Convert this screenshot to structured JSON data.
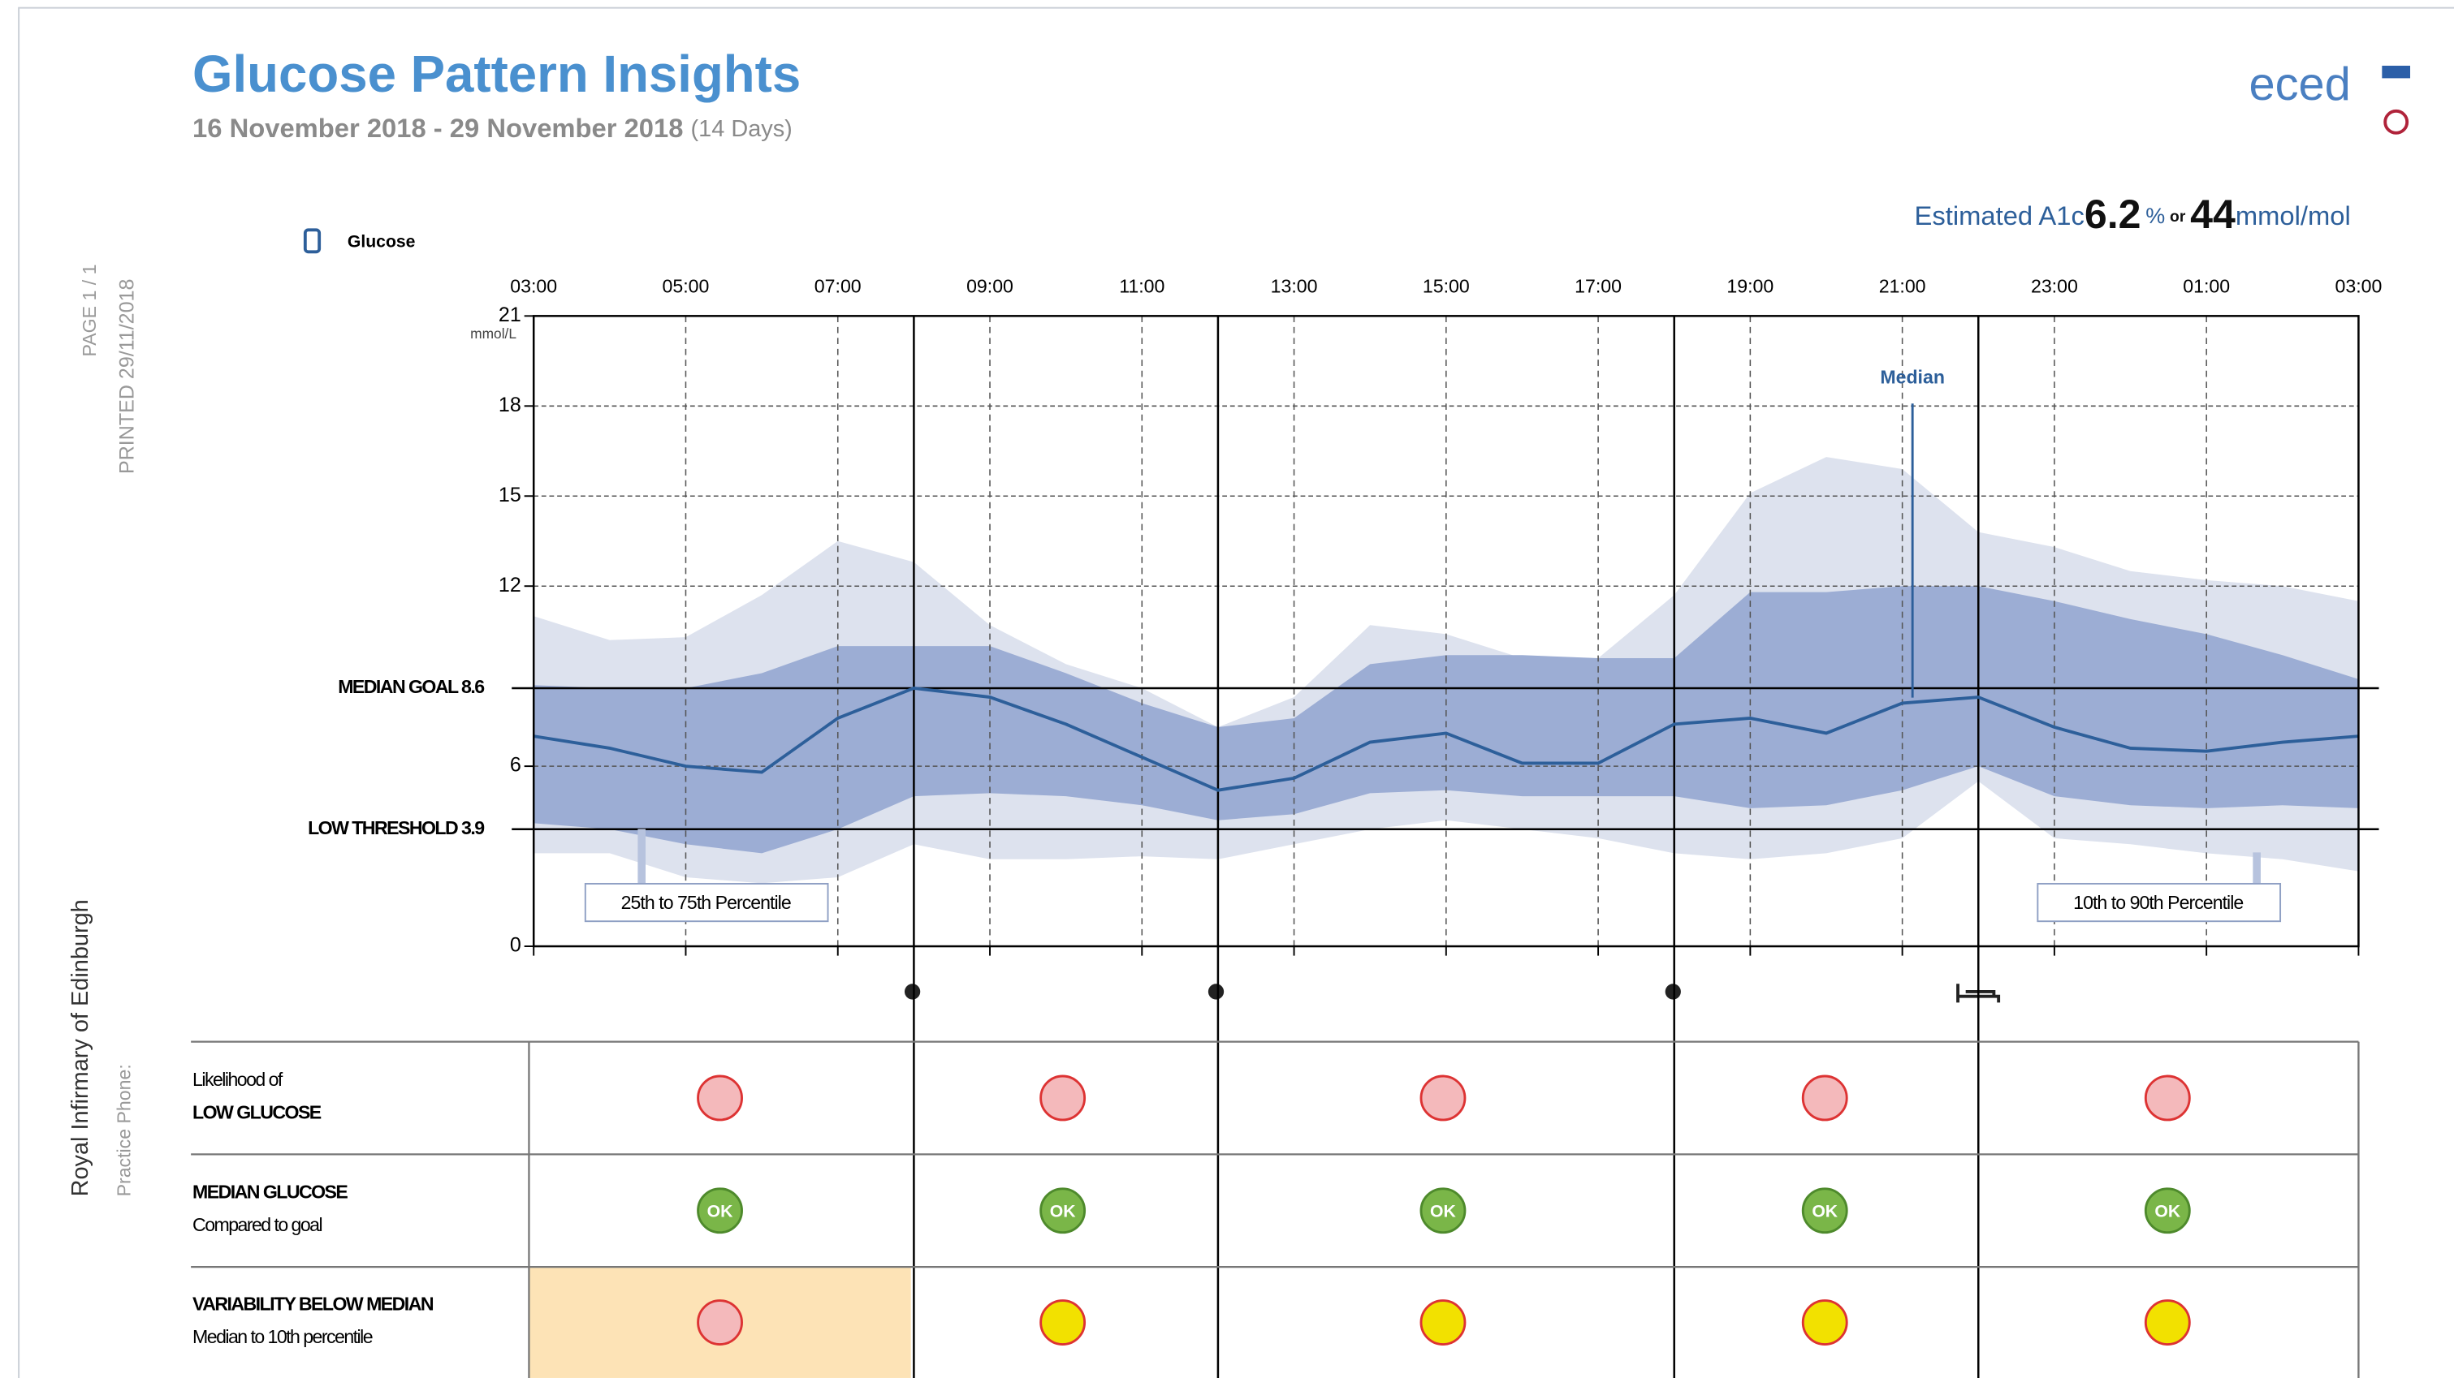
{
  "header": {
    "title": "Glucose Pattern Insights",
    "date_range": "16 November 2018 - 29 November 2018",
    "days": "(14 Days)",
    "logo": "eced",
    "page": "PAGE 1 / 1",
    "printed": "PRINTED 29/11/2018",
    "clinic": "Royal Infirmary of Edinburgh",
    "phone": "Practice Phone:"
  },
  "a1c": {
    "label": "Estimated A1c",
    "percent": 6.2,
    "percent_unit": "%",
    "or": "or",
    "mmol": 44,
    "mmol_unit": "mmol/mol"
  },
  "chart_data": {
    "type": "band-line",
    "legend": "Glucose",
    "y_unit": "mmol/L",
    "x": [
      3,
      4,
      5,
      6,
      7,
      8,
      9,
      10,
      11,
      12,
      13,
      14,
      15,
      16,
      17,
      18,
      19,
      20,
      21,
      22,
      23,
      24,
      25,
      26,
      27
    ],
    "xlim": [
      3,
      27
    ],
    "xticks": [
      {
        "value": 3,
        "label": "03:00"
      },
      {
        "value": 5,
        "label": "05:00"
      },
      {
        "value": 7,
        "label": "07:00"
      },
      {
        "value": 9,
        "label": "09:00"
      },
      {
        "value": 11,
        "label": "11:00"
      },
      {
        "value": 13,
        "label": "13:00"
      },
      {
        "value": 15,
        "label": "15:00"
      },
      {
        "value": 17,
        "label": "17:00"
      },
      {
        "value": 19,
        "label": "19:00"
      },
      {
        "value": 21,
        "label": "21:00"
      },
      {
        "value": 23,
        "label": "23:00"
      },
      {
        "value": 25,
        "label": "01:00"
      },
      {
        "value": 27,
        "label": "03:00"
      }
    ],
    "ylim": [
      0,
      21
    ],
    "yticks": [
      0,
      6,
      12,
      15,
      18,
      21
    ],
    "grid": true,
    "period_boundaries": [
      8,
      12,
      18,
      22
    ],
    "bands": [
      {
        "name": "10th to 90th Percentile",
        "color": "#dde2ee",
        "low": [
          3.1,
          3.1,
          2.3,
          2.1,
          2.3,
          3.4,
          2.9,
          2.9,
          3.0,
          2.9,
          3.4,
          3.9,
          4.2,
          3.9,
          3.6,
          3.1,
          2.9,
          3.1,
          3.6,
          5.5,
          3.6,
          3.4,
          3.1,
          2.9,
          2.5
        ],
        "high": [
          11.0,
          10.2,
          10.3,
          11.7,
          13.5,
          12.8,
          10.7,
          9.4,
          8.6,
          7.3,
          8.3,
          10.7,
          10.4,
          9.6,
          9.6,
          11.7,
          15.1,
          16.3,
          15.9,
          13.8,
          13.3,
          12.5,
          12.2,
          12.0,
          11.5
        ]
      },
      {
        "name": "25th to 75th Percentile",
        "color": "#9cadd4",
        "low": [
          4.1,
          3.9,
          3.4,
          3.1,
          3.9,
          5.0,
          5.1,
          5.0,
          4.7,
          4.2,
          4.4,
          5.1,
          5.2,
          5.0,
          5.0,
          5.0,
          4.6,
          4.7,
          5.2,
          6.0,
          5.0,
          4.7,
          4.6,
          4.7,
          4.6
        ],
        "high": [
          8.7,
          8.6,
          8.6,
          9.1,
          10.0,
          10.0,
          10.0,
          9.1,
          8.1,
          7.3,
          7.6,
          9.4,
          9.7,
          9.7,
          9.6,
          9.6,
          11.8,
          11.8,
          12.0,
          12.0,
          11.5,
          10.9,
          10.4,
          9.7,
          8.9
        ]
      }
    ],
    "series": [
      {
        "name": "Median",
        "color": "#2d5f9a",
        "values": [
          7.0,
          6.6,
          6.0,
          5.8,
          7.6,
          8.6,
          8.3,
          7.4,
          6.3,
          5.2,
          5.6,
          6.8,
          7.1,
          6.1,
          6.1,
          7.4,
          7.6,
          7.1,
          8.1,
          8.3,
          7.3,
          6.6,
          6.5,
          6.8,
          7.0
        ]
      }
    ],
    "reference_lines": [
      {
        "value": 8.6,
        "label": "MEDIAN GOAL 8.6"
      },
      {
        "value": 3.9,
        "label": "LOW THRESHOLD 3.9"
      }
    ]
  },
  "table": {
    "rows": [
      {
        "title": "Likelihood of",
        "subtitle": "LOW GLUCOSE",
        "cells": [
          {
            "color": "#f4b9bb"
          },
          {
            "color": "#f4b9bb"
          },
          {
            "color": "#f4b9bb"
          },
          {
            "color": "#f4b9bb"
          },
          {
            "color": "#f4b9bb"
          }
        ]
      },
      {
        "title": "MEDIAN GLUCOSE",
        "subtitle": "Compared to goal",
        "cells": [
          {
            "color": "#7ab648",
            "label": "OK"
          },
          {
            "color": "#7ab648",
            "label": "OK"
          },
          {
            "color": "#7ab648",
            "label": "OK"
          },
          {
            "color": "#7ab648",
            "label": "OK"
          },
          {
            "color": "#7ab648",
            "label": "OK"
          }
        ]
      },
      {
        "title": "VARIABILITY BELOW MEDIAN",
        "subtitle": "Median to 10th percentile",
        "highlight": "#fde3b6",
        "cells": [
          {
            "color": "#f4b9bb"
          },
          {
            "color": "#f2e100"
          },
          {
            "color": "#f2e100"
          },
          {
            "color": "#f2e100"
          },
          {
            "color": "#f2e100"
          }
        ]
      }
    ]
  }
}
